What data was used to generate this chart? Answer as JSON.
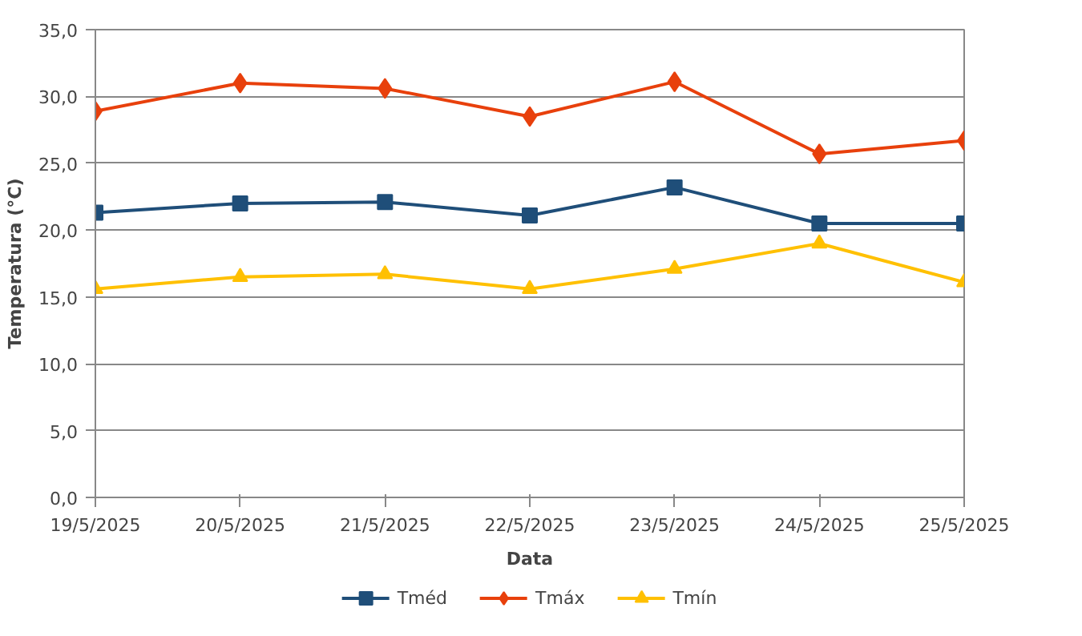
{
  "chart_data": {
    "type": "line",
    "xlabel": "Data",
    "ylabel": "Temperatura (°C)",
    "categories": [
      "19/5/2025",
      "20/5/2025",
      "21/5/2025",
      "22/5/2025",
      "23/5/2025",
      "24/5/2025",
      "25/5/2025"
    ],
    "series": [
      {
        "name": "Tméd",
        "color": "#1f4e79",
        "marker": "square",
        "values": [
          21.3,
          22.0,
          22.1,
          21.1,
          23.2,
          20.5,
          20.5
        ]
      },
      {
        "name": "Tmáx",
        "color": "#e8400c",
        "marker": "diamond",
        "values": [
          28.9,
          31.0,
          30.6,
          28.5,
          31.1,
          25.7,
          26.7
        ]
      },
      {
        "name": "Tmín",
        "color": "#ffc000",
        "marker": "triangle",
        "values": [
          15.6,
          16.5,
          16.7,
          15.6,
          17.1,
          19.0,
          16.1
        ]
      }
    ],
    "ylim": [
      0,
      35
    ],
    "yticks": [
      {
        "value": 0,
        "label": "0,0"
      },
      {
        "value": 5,
        "label": "5,0"
      },
      {
        "value": 10,
        "label": "10,0"
      },
      {
        "value": 15,
        "label": "15,0"
      },
      {
        "value": 20,
        "label": "20,0"
      },
      {
        "value": 25,
        "label": "25,0"
      },
      {
        "value": 30,
        "label": "30,0"
      },
      {
        "value": 35,
        "label": "35,0"
      }
    ],
    "grid": "y",
    "legend": "bottom",
    "line_style": "solid"
  }
}
